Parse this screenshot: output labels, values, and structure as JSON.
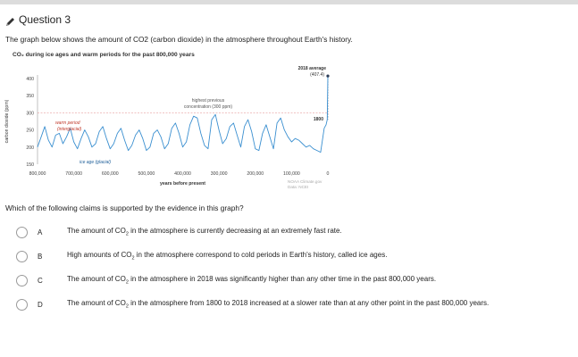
{
  "question": {
    "title": "Question 3",
    "prompt": "The graph below shows the amount of CO2 (carbon dioxide) in the atmosphere throughout Earth's history."
  },
  "chart_data": {
    "type": "line",
    "title": "CO₂ during ice ages and warm periods for the past 800,000 years",
    "xlabel": "years before present",
    "ylabel": "carbon dioxide (ppm)",
    "ylim": [
      150,
      400
    ],
    "xlim": [
      800000,
      0
    ],
    "x_ticks": [
      "800,000",
      "700,000",
      "600,000",
      "500,000",
      "400,000",
      "300,000",
      "200,000",
      "100,000",
      "0"
    ],
    "y_ticks": [
      "400",
      "350",
      "300",
      "250",
      "200",
      "150"
    ],
    "grid": false,
    "series": [
      {
        "x": [
          800000,
          790000,
          780000,
          770000,
          760000,
          750000,
          740000,
          730000,
          720000,
          710000,
          700000,
          690000,
          680000,
          670000,
          660000,
          650000,
          640000,
          630000,
          620000,
          610000,
          600000,
          590000,
          580000,
          570000,
          560000,
          550000,
          540000,
          530000,
          520000,
          510000,
          500000,
          490000,
          480000,
          470000,
          460000,
          450000,
          440000,
          430000,
          420000,
          410000,
          400000,
          390000,
          380000,
          370000,
          360000,
          350000,
          340000,
          330000,
          320000,
          310000,
          300000,
          290000,
          280000,
          270000,
          260000,
          250000,
          240000,
          230000,
          220000,
          210000,
          200000,
          190000,
          180000,
          170000,
          160000,
          150000,
          140000,
          130000,
          120000,
          110000,
          100000,
          90000,
          80000,
          70000,
          60000,
          50000,
          40000,
          30000,
          20000,
          10000,
          5000,
          1800,
          0
        ],
        "values": [
          200,
          230,
          260,
          220,
          200,
          235,
          240,
          210,
          230,
          255,
          215,
          195,
          225,
          250,
          230,
          200,
          210,
          245,
          260,
          225,
          195,
          210,
          240,
          255,
          220,
          190,
          205,
          235,
          250,
          225,
          190,
          200,
          240,
          250,
          230,
          195,
          210,
          255,
          270,
          240,
          200,
          215,
          265,
          290,
          285,
          240,
          205,
          195,
          280,
          295,
          250,
          210,
          225,
          260,
          270,
          235,
          200,
          260,
          280,
          245,
          195,
          190,
          240,
          265,
          230,
          195,
          270,
          285,
          250,
          230,
          215,
          225,
          220,
          210,
          200,
          205,
          195,
          190,
          185,
          255,
          265,
          280,
          407.4
        ]
      }
    ],
    "annotations": [
      {
        "text": "2018 average",
        "value_text": "(407.4)",
        "x": 0,
        "y": 407.4
      },
      {
        "text": "highest previous",
        "text2": "concentration (300 ppm)",
        "y": 300
      },
      {
        "text": "1800",
        "x": 1800,
        "y": 280
      },
      {
        "text": "warm period",
        "text2": "(interglacial)"
      },
      {
        "text": "ice age (glacial)"
      }
    ],
    "source": [
      "NOAA Climate.gov",
      "Data: NCEI"
    ],
    "colors": {
      "line": "#3a8fd0",
      "dashed": "#e8a0a0",
      "warm_label": "#c0392b",
      "ice_label": "#1f5f99",
      "point": "#2a3a55"
    }
  },
  "prompt2": "Which of the following claims is supported by the evidence in this graph?",
  "options": [
    {
      "letter": "A",
      "pre": "The amount of CO",
      "sub": "2",
      "post": " in the atmosphere is currently decreasing at an extremely fast rate."
    },
    {
      "letter": "B",
      "pre": "High amounts of CO",
      "sub": "2",
      "post": " in the atmosphere correspond to cold periods in Earth's history, called ice ages."
    },
    {
      "letter": "C",
      "pre": "The amount of CO",
      "sub": "2",
      "post": " in the atmosphere in 2018 was significantly higher than any other time in the past 800,000 years."
    },
    {
      "letter": "D",
      "pre": "The amount of CO",
      "sub": "2",
      "post": " in the atmosphere from 1800 to 2018 increased at a slower rate than at any other point in the past 800,000 years."
    }
  ]
}
